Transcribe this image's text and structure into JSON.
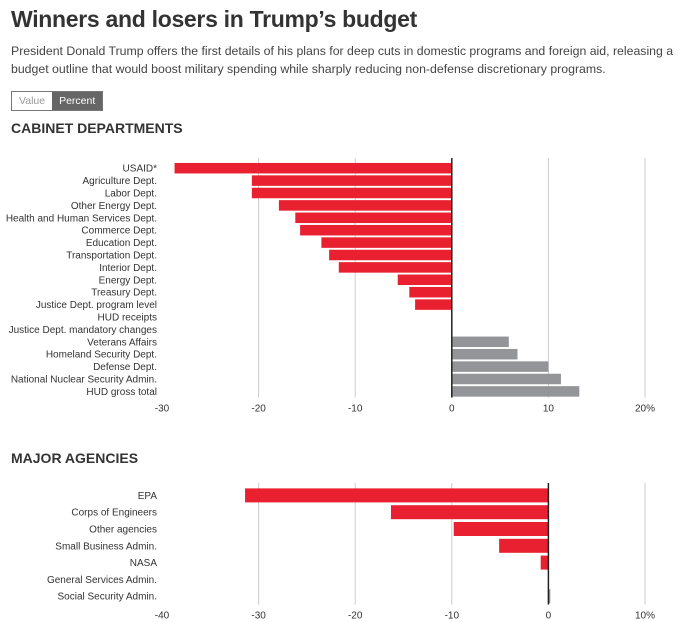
{
  "header": {
    "title": "Winners and losers in Trump’s budget",
    "subtitle": "President Donald Trump offers the first details of his plans for deep cuts in domestic programs and foreign aid, releasing a budget outline that would boost military spending while sharply reducing non-defense discretionary programs."
  },
  "toggle": {
    "value_label": "Value",
    "percent_label": "Percent",
    "selected": "Percent"
  },
  "colors": {
    "negative": "#e8202f",
    "positive": "#939598",
    "zero_line": "#222222",
    "grid": "#cccccc"
  },
  "chart_data": [
    {
      "type": "bar",
      "orientation": "horizontal",
      "title": "CABINET DEPARTMENTS",
      "xlim": [
        -30,
        20
      ],
      "ticks": [
        -30,
        -20,
        -10,
        0,
        10,
        20
      ],
      "tick_labels": [
        "-30",
        "-20",
        "-10",
        "0",
        "10",
        "20%"
      ],
      "grid": true,
      "categories": [
        "USAID*",
        "Agriculture Dept.",
        "Labor Dept.",
        "Other Energy Dept.",
        "Health and Human Services Dept.",
        "Commerce Dept.",
        "Education Dept.",
        "Transportation Dept.",
        "Interior Dept.",
        "Energy Dept.",
        "Treasury Dept.",
        "Justice Dept. program level",
        "HUD receipts",
        "Justice Dept. mandatory changes",
        "Veterans Affairs",
        "Homeland Security Dept.",
        "Defense Dept.",
        "National Nuclear Security Admin.",
        "HUD gross total"
      ],
      "values": [
        -28.7,
        -20.7,
        -20.7,
        -17.9,
        -16.2,
        -15.7,
        -13.5,
        -12.7,
        -11.7,
        -5.6,
        -4.4,
        -3.8,
        0,
        0,
        5.9,
        6.8,
        10,
        11.3,
        13.2
      ]
    },
    {
      "type": "bar",
      "orientation": "horizontal",
      "title": "MAJOR AGENCIES",
      "xlim": [
        -40,
        10
      ],
      "ticks": [
        -40,
        -30,
        -20,
        -10,
        0,
        10
      ],
      "tick_labels": [
        "-40",
        "-30",
        "-20",
        "-10",
        "0",
        "10%"
      ],
      "grid": true,
      "categories": [
        "EPA",
        "Corps of Engineers",
        "Other agencies",
        "Small Business Admin.",
        "NASA",
        "General Services Admin.",
        "Social Security Admin."
      ],
      "values": [
        -31.4,
        -16.3,
        -9.8,
        -5.1,
        -0.8,
        0,
        0.2
      ]
    }
  ]
}
